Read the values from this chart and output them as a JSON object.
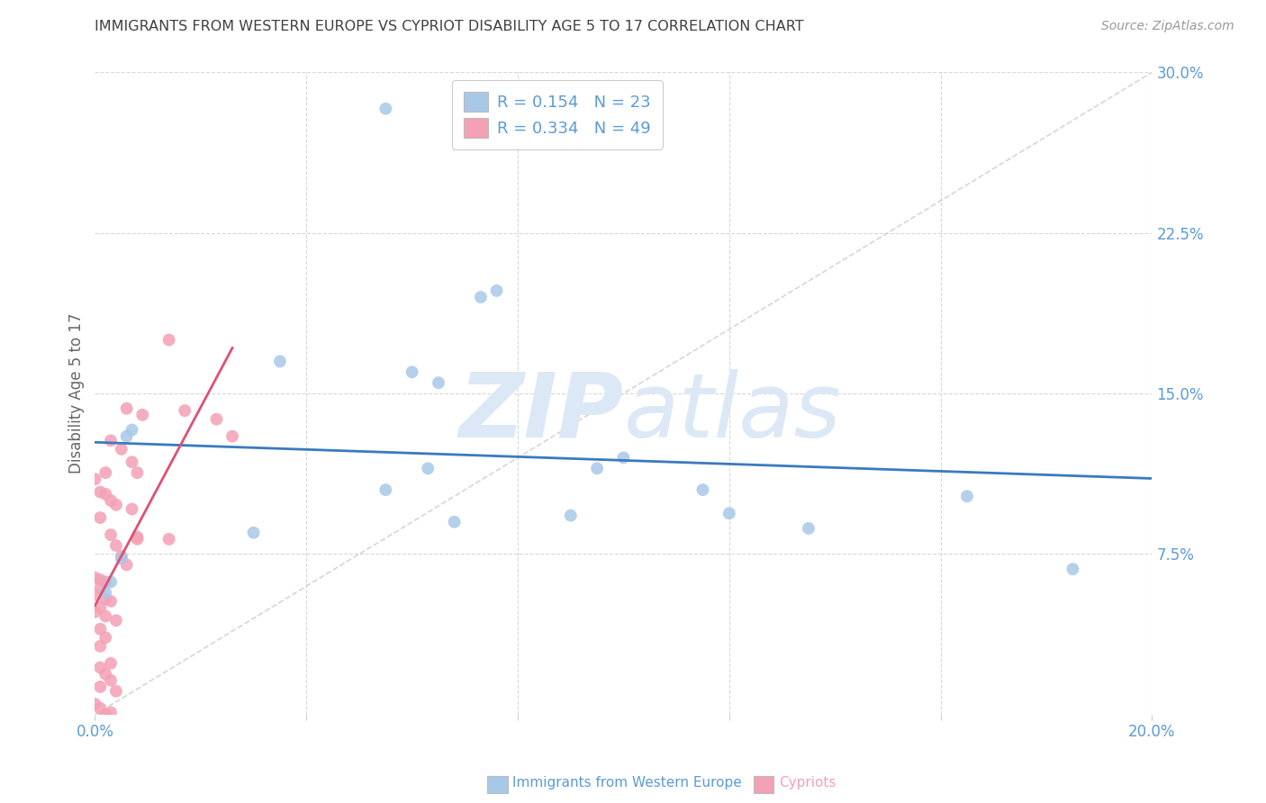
{
  "title": "IMMIGRANTS FROM WESTERN EUROPE VS CYPRIOT DISABILITY AGE 5 TO 17 CORRELATION CHART",
  "source": "Source: ZipAtlas.com",
  "ylabel": "Disability Age 5 to 17",
  "xlim": [
    0.0,
    0.2
  ],
  "ylim": [
    0.0,
    0.3
  ],
  "blue_R": 0.154,
  "blue_N": 23,
  "pink_R": 0.334,
  "pink_N": 49,
  "blue_color": "#a8c8e8",
  "pink_color": "#f4a0b5",
  "blue_line_color": "#3a7abf",
  "pink_line_color": "#e05070",
  "ref_line_color": "#cccccc",
  "watermark_color": "#dce8f5",
  "grid_color": "#d8d8d8",
  "tick_color": "#5b9bd5",
  "title_color": "#404040",
  "blue_scatter_x": [
    0.055,
    0.073,
    0.076,
    0.006,
    0.007,
    0.035,
    0.06,
    0.065,
    0.095,
    0.1,
    0.115,
    0.12,
    0.135,
    0.09,
    0.165,
    0.185,
    0.005,
    0.003,
    0.002,
    0.03,
    0.055,
    0.063,
    0.068
  ],
  "blue_scatter_y": [
    0.283,
    0.195,
    0.198,
    0.13,
    0.133,
    0.165,
    0.16,
    0.155,
    0.115,
    0.12,
    0.105,
    0.094,
    0.087,
    0.093,
    0.102,
    0.068,
    0.073,
    0.062,
    0.057,
    0.085,
    0.105,
    0.115,
    0.09
  ],
  "pink_scatter_x": [
    0.014,
    0.006,
    0.009,
    0.003,
    0.005,
    0.007,
    0.002,
    0.008,
    0.0,
    0.001,
    0.002,
    0.003,
    0.004,
    0.007,
    0.001,
    0.003,
    0.008,
    0.014,
    0.017,
    0.023,
    0.026,
    0.008,
    0.004,
    0.005,
    0.006,
    0.0,
    0.001,
    0.002,
    0.001,
    0.0,
    0.002,
    0.003,
    0.001,
    0.0,
    0.002,
    0.004,
    0.001,
    0.002,
    0.001,
    0.003,
    0.001,
    0.002,
    0.003,
    0.001,
    0.004,
    0.0,
    0.001,
    0.003,
    0.002
  ],
  "pink_scatter_y": [
    0.175,
    0.143,
    0.14,
    0.128,
    0.124,
    0.118,
    0.113,
    0.113,
    0.11,
    0.104,
    0.103,
    0.1,
    0.098,
    0.096,
    0.092,
    0.084,
    0.083,
    0.082,
    0.142,
    0.138,
    0.13,
    0.082,
    0.079,
    0.074,
    0.07,
    0.064,
    0.063,
    0.062,
    0.059,
    0.056,
    0.054,
    0.053,
    0.05,
    0.048,
    0.046,
    0.044,
    0.04,
    0.036,
    0.032,
    0.024,
    0.022,
    0.019,
    0.016,
    0.013,
    0.011,
    0.005,
    0.003,
    0.001,
    0.0
  ]
}
